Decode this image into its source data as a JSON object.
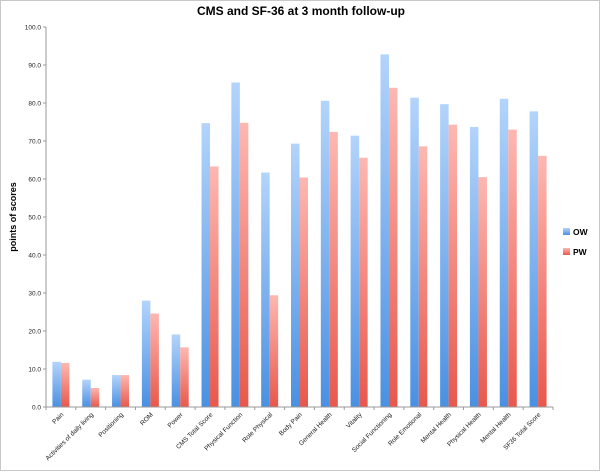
{
  "chart_data": {
    "type": "bar",
    "title": "CMS and SF-36 at 3 month follow-up",
    "xlabel": "",
    "ylabel": "points of scores",
    "ylim": [
      0,
      100
    ],
    "yticks": [
      "0.0",
      "10.0",
      "20.0",
      "30.0",
      "40.0",
      "50.0",
      "60.0",
      "70.0",
      "80.0",
      "90.0",
      "100.0"
    ],
    "grid": false,
    "legend_position": "right",
    "categories": [
      "Pain",
      "Activities of daily living",
      "Positioning",
      "ROM",
      "Power",
      "CMS Total Score",
      "Physical Function",
      "Role Physical",
      "Body Pain",
      "General Health",
      "Vitality",
      "Social Functioning",
      "Role Emotional",
      "Mental Health",
      "Physical Health",
      "Mental Health",
      "SF36 Total Score"
    ],
    "series": [
      {
        "name": "OW",
        "color_top": "#b3d4fb",
        "color_bottom": "#4a90e2",
        "values": [
          11.9,
          7.2,
          8.4,
          28.0,
          19.1,
          74.7,
          85.4,
          61.7,
          69.3,
          80.6,
          71.4,
          92.8,
          81.4,
          79.7,
          73.7,
          81.1,
          77.8
        ]
      },
      {
        "name": "PW",
        "color_top": "#fdb8b1",
        "color_bottom": "#e8584c",
        "values": [
          11.6,
          5.0,
          8.4,
          24.6,
          15.7,
          63.3,
          74.8,
          29.4,
          60.4,
          72.4,
          65.6,
          84.0,
          68.6,
          74.3,
          60.5,
          73.0,
          66.1
        ]
      }
    ]
  }
}
